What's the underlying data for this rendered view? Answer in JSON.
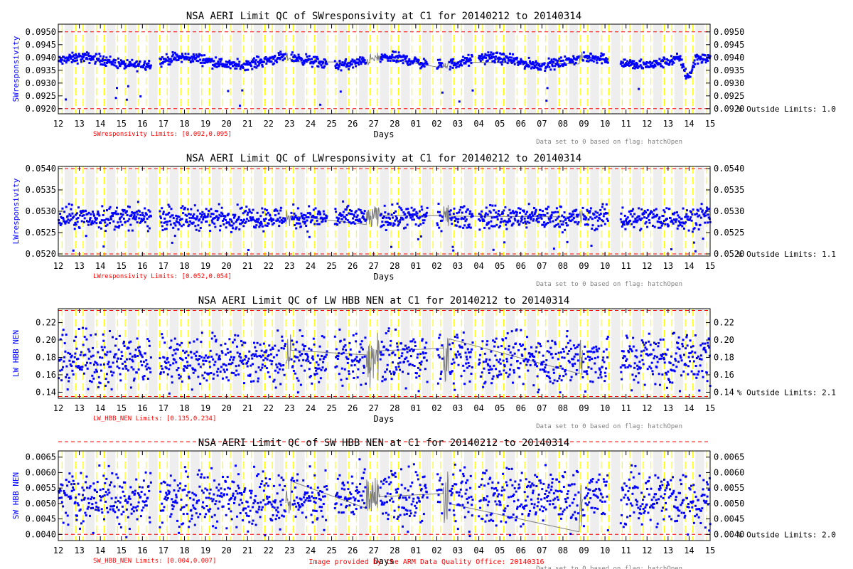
{
  "chart_data": [
    {
      "type": "scatter",
      "title": "NSA AERI Limit QC of SWresponsivity at C1 for 20140212 to 20140314",
      "ylabel": "SWresponsivity",
      "xlabel": "Days",
      "ylim": [
        0.0918,
        0.0953
      ],
      "yticks": [
        "0.0920",
        "0.0925",
        "0.0930",
        "0.0935",
        "0.0940",
        "0.0945",
        "0.0950"
      ],
      "tick_values": [
        0.092,
        0.0925,
        0.093,
        0.0935,
        0.094,
        0.0945,
        0.095
      ],
      "limits": [
        0.092,
        0.095
      ],
      "limits_label": "SWresponsivity Limits: [0.092,0.095]",
      "outside_label": "% Outside Limits: 1.0",
      "flag_note": "Data set to 0 based on flag: hatchOpen",
      "series": [
        {
          "mean": 0.09385,
          "spread": 0.0003,
          "spike_low": 0.0921,
          "trend": "sw"
        }
      ]
    },
    {
      "type": "scatter",
      "title": "NSA AERI Limit QC of LWresponsivity at C1 for 20140212 to 20140314",
      "ylabel": "LWresponsivity",
      "xlabel": "Days",
      "ylim": [
        0.05195,
        0.05405
      ],
      "yticks": [
        "0.0520",
        "0.0525",
        "0.0530",
        "0.0535",
        "0.0540"
      ],
      "tick_values": [
        0.052,
        0.0525,
        0.053,
        0.0535,
        0.054
      ],
      "limits": [
        0.052,
        0.054
      ],
      "limits_label": "LWresponsivity Limits: [0.052,0.054]",
      "outside_label": "% Outside Limits: 1.1",
      "flag_note": "Data set to 0 based on flag: hatchOpen",
      "series": [
        {
          "mean": 0.05285,
          "spread": 0.0004,
          "spike_low": 0.05205,
          "trend": "flat"
        }
      ]
    },
    {
      "type": "scatter",
      "title": "NSA AERI Limit QC of LW HBB NEN at C1 for 20140212 to 20140314",
      "ylabel": "LW HBB NEN",
      "xlabel": "Days",
      "ylim": [
        0.133,
        0.236
      ],
      "yticks": [
        "0.14",
        "0.16",
        "0.18",
        "0.20",
        "0.22"
      ],
      "tick_values": [
        0.14,
        0.16,
        0.18,
        0.2,
        0.22
      ],
      "limits": [
        0.135,
        0.234
      ],
      "limits_label": "LW_HBB_NEN Limits: [0.135,0.234]",
      "outside_label": "% Outside Limits: 2.1",
      "flag_note": "Data set to 0 based on flag: hatchOpen",
      "series": [
        {
          "mean": 0.178,
          "spread": 0.045,
          "spike_low": 0.137,
          "trend": "flat"
        }
      ]
    },
    {
      "type": "scatter",
      "title": "NSA AERI Limit QC of SW HBB NEN at C1 for 20140212 to 20140314",
      "ylabel": "SW HBB NEN",
      "xlabel": "Days",
      "ylim": [
        0.0038,
        0.0067
      ],
      "yticks": [
        "0.0040",
        "0.0045",
        "0.0050",
        "0.0055",
        "0.0060",
        "0.0065"
      ],
      "tick_values": [
        0.004,
        0.0045,
        0.005,
        0.0055,
        0.006,
        0.0065
      ],
      "limits": [
        0.004,
        0.007
      ],
      "limits_label": "SW_HBB_NEN Limits: [0.004,0.007]",
      "outside_label": "% Outside Limits: 2.0",
      "flag_note": "Data set to 0 based on flag: hatchOpen",
      "series": [
        {
          "mean": 0.0052,
          "spread": 0.0013,
          "spike_low": 0.0039,
          "trend": "flat"
        }
      ]
    }
  ],
  "x_ticks": [
    "12",
    "13",
    "14",
    "15",
    "16",
    "17",
    "18",
    "19",
    "20",
    "21",
    "22",
    "23",
    "24",
    "25",
    "26",
    "27",
    "28",
    "01",
    "02",
    "03",
    "04",
    "05",
    "06",
    "07",
    "08",
    "09",
    "10",
    "11",
    "12",
    "13",
    "14",
    "15"
  ],
  "x_range": [
    0,
    31
  ],
  "data_gaps": [
    [
      4.42,
      4.82
    ],
    [
      12.78,
      13.12
    ],
    [
      17.55,
      17.98
    ],
    [
      19.7,
      19.98
    ],
    [
      26.15,
      26.72
    ]
  ],
  "hatch_regions": [
    [
      10.8,
      11.05
    ],
    [
      14.6,
      15.3
    ],
    [
      18.25,
      18.6
    ],
    [
      24.75,
      24.95
    ]
  ],
  "colors": {
    "data": "#0000ff",
    "hatch": "#808080",
    "limit": "#ff0000",
    "night_band": "#eeeeee",
    "day_line": "#ffff00",
    "ylabel": "#0000ff",
    "limits_text": "#ff0000",
    "note_text": "#808080",
    "footer_text": "#ff0000"
  },
  "footer": "Image provided by the ARM Data Quality Office: 20140316"
}
